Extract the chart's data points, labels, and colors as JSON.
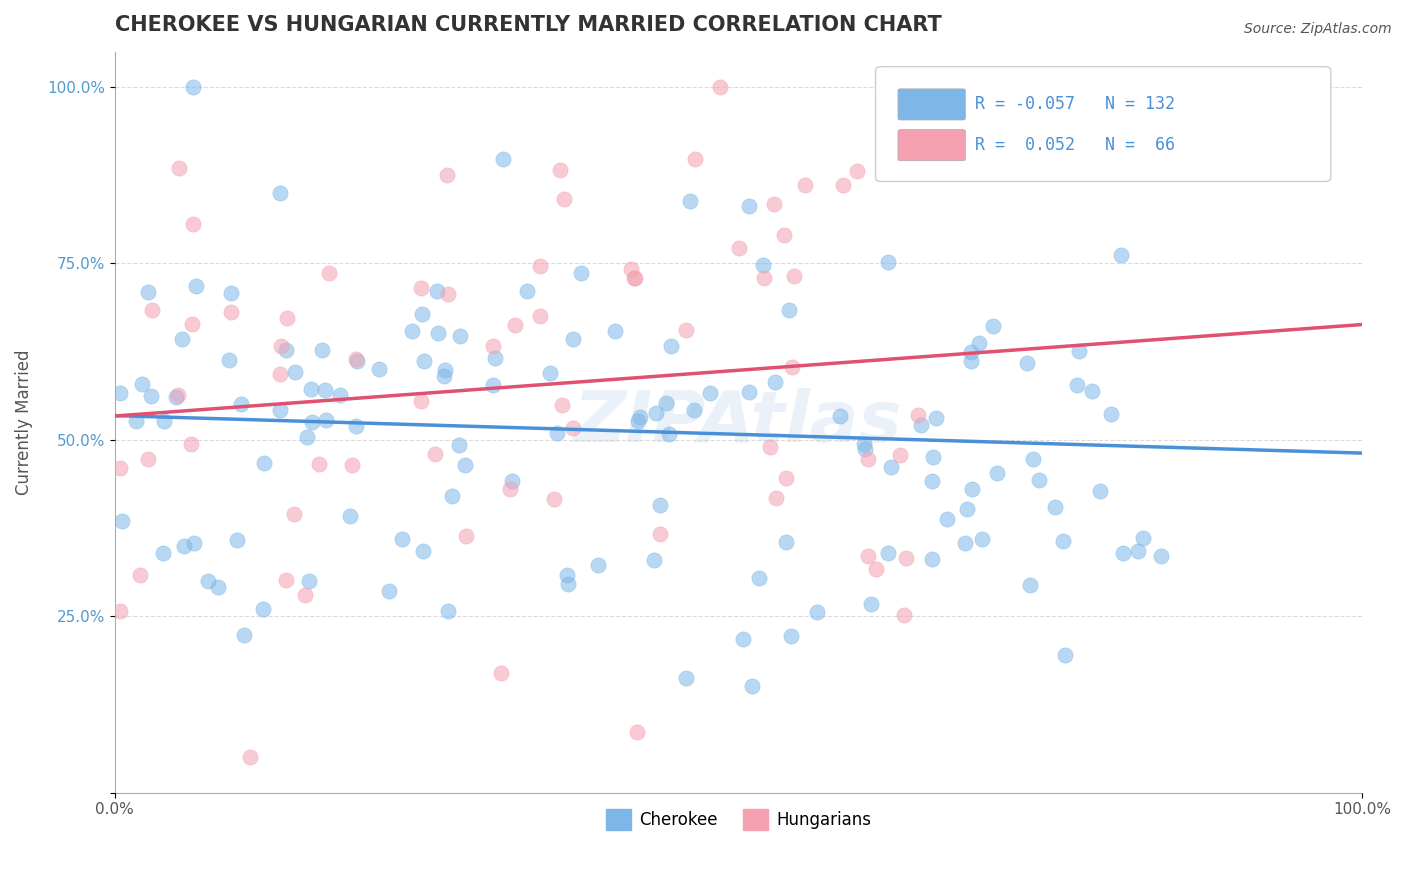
{
  "title": "CHEROKEE VS HUNGARIAN CURRENTLY MARRIED CORRELATION CHART",
  "source_text": "Source: ZipAtlas.com",
  "xlabel": "",
  "ylabel": "Currently Married",
  "xlim": [
    0.0,
    1.0
  ],
  "ylim": [
    0.0,
    1.05
  ],
  "cherokee_R": -0.057,
  "cherokee_N": 132,
  "hungarian_R": 0.052,
  "hungarian_N": 66,
  "cherokee_color": "#7EB6E8",
  "hungarian_color": "#F4A0B0",
  "cherokee_line_color": "#4A90D9",
  "hungarian_line_color": "#E05070",
  "background_color": "#FFFFFF",
  "title_color": "#333333",
  "title_fontsize": 15,
  "axis_label_fontsize": 12,
  "tick_fontsize": 11,
  "watermark_text": "ZIPAtlas",
  "watermark_color": "#CCDDEE",
  "legend_r_color": "#4A90D9",
  "legend_n_color": "#4A90D9",
  "cherokee_seed": 42,
  "hungarian_seed": 99,
  "marker_size": 120,
  "marker_alpha": 0.55,
  "grid_color": "#CCCCCC",
  "grid_linestyle": "--",
  "grid_alpha": 0.7,
  "xtick_labels": [
    "0.0%",
    "100.0%"
  ],
  "ytick_positions": [
    0.0,
    0.25,
    0.5,
    0.75,
    1.0
  ],
  "ytick_labels": [
    "",
    "25.0%",
    "50.0%",
    "75.0%",
    "100.0%"
  ],
  "figsize": [
    14.06,
    8.92
  ],
  "dpi": 100
}
